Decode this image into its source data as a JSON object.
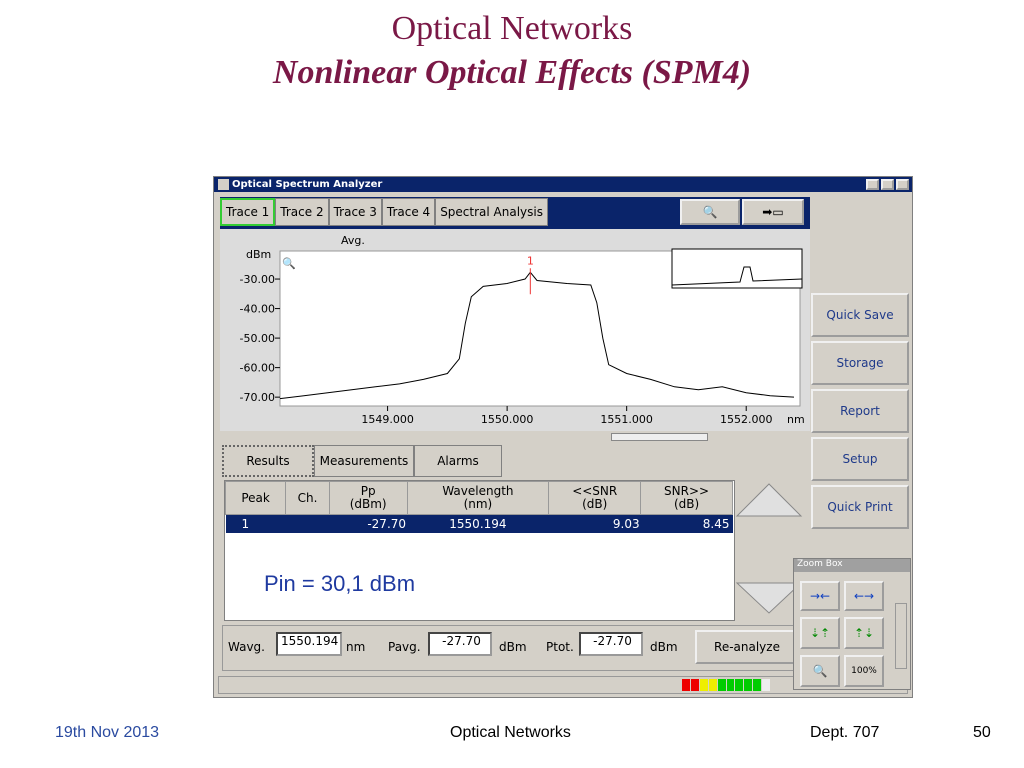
{
  "slide": {
    "title": "Optical Networks",
    "subtitle": "Nonlinear Optical Effects (SPM4)"
  },
  "window": {
    "title": "Optical Spectrum Analyzer",
    "tabs": [
      "Trace 1",
      "Trace 2",
      "Trace 3",
      "Trace 4",
      "Spectral Analysis"
    ]
  },
  "plot": {
    "y_unit": "dBm",
    "mode": "Avg.",
    "x_unit": "nm",
    "marker": "1",
    "spectrum": {
      "x": [
        1548.1,
        1548.3,
        1548.5,
        1548.7,
        1548.9,
        1549.1,
        1549.3,
        1549.5,
        1549.6,
        1549.65,
        1549.7,
        1549.8,
        1550.0,
        1550.15,
        1550.194,
        1550.25,
        1550.5,
        1550.7,
        1550.75,
        1550.8,
        1550.85,
        1551.0,
        1551.2,
        1551.4,
        1551.6,
        1551.8,
        1552.0,
        1552.2,
        1552.4
      ],
      "y": [
        -70.5,
        -69.5,
        -68.5,
        -67.5,
        -66.5,
        -65.5,
        -64,
        -62,
        -57,
        -45,
        -36,
        -32.5,
        -31.5,
        -30,
        -27.7,
        -30.5,
        -31.5,
        -32,
        -38,
        -50,
        -59,
        -62,
        -64,
        -66.5,
        -67.5,
        -66.5,
        -68.5,
        -69.5,
        -70
      ],
      "xlim": [
        1548.1,
        1552.45
      ],
      "ylim": [
        -73,
        -20.5
      ],
      "xticks": [
        {
          "value": 1549,
          "label": "1549.000"
        },
        {
          "value": 1550,
          "label": "1550.000"
        },
        {
          "value": 1551,
          "label": "1551.000"
        },
        {
          "value": 1552,
          "label": "1552.000"
        }
      ],
      "yticks": [
        {
          "value": -30,
          "label": "-30.00"
        },
        {
          "value": -40,
          "label": "-40.00"
        },
        {
          "value": -50,
          "label": "-50.00"
        },
        {
          "value": -60,
          "label": "-60.00"
        },
        {
          "value": -70,
          "label": "-70.00"
        }
      ]
    }
  },
  "sidebar": [
    "Quick Save",
    "Storage",
    "Report",
    "Setup",
    "Quick Print"
  ],
  "result_tabs": [
    "Results",
    "Measurements",
    "Alarms"
  ],
  "table": {
    "headers": [
      [
        "Peak"
      ],
      [
        "Ch."
      ],
      [
        "Pp",
        "(dBm)"
      ],
      [
        "Wavelength",
        "(nm)"
      ],
      [
        "<<SNR",
        "(dB)"
      ],
      [
        "SNR>>",
        "(dB)"
      ]
    ],
    "row": {
      "peak": "1",
      "pp": "-27.70",
      "wavelength": "1550.194",
      "snr_left": "9.03",
      "snr_right": "8.45"
    }
  },
  "annotation": "Pin = 30,1 dBm",
  "summary": {
    "wavg_label": "Wavg.",
    "wavg_value": "1550.194",
    "wavg_unit": "nm",
    "pavg_label": "Pavg.",
    "pavg_value": "-27.70",
    "pavg_unit": "dBm",
    "ptot_label": "Ptot.",
    "ptot_value": "-27.70",
    "ptot_unit": "dBm",
    "button": "Re-analyze"
  },
  "zoom_box": {
    "title": "Zoom Box",
    "zoom_label": "100%"
  },
  "footer": {
    "date": "19th Nov 2013",
    "center": "Optical Networks",
    "dept": "Dept. 707",
    "page": "50"
  }
}
